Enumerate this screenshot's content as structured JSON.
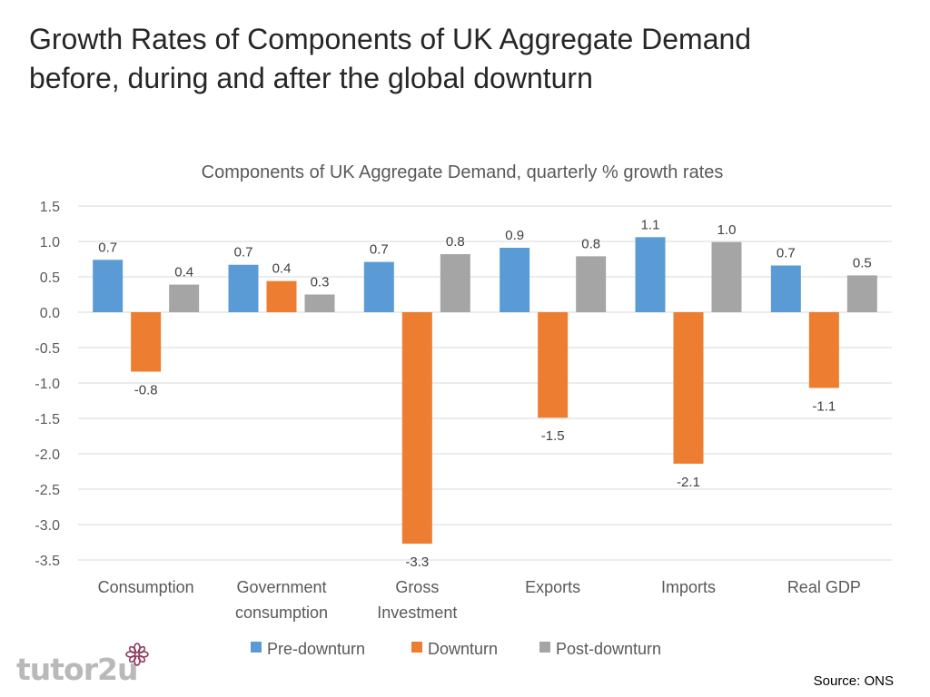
{
  "slide": {
    "title_line1": "Growth Rates of Components of UK Aggregate Demand",
    "title_line2": "before, during and after the global downturn",
    "source": "Source: ONS",
    "logo_text": "tutor2u"
  },
  "chart_data": {
    "type": "bar",
    "title": "Components of UK Aggregate Demand, quarterly % growth rates",
    "categories": [
      [
        "Consumption"
      ],
      [
        "Government",
        "consumption"
      ],
      [
        "Gross",
        "Investment"
      ],
      [
        "Exports"
      ],
      [
        "Imports"
      ],
      [
        "Real GDP"
      ]
    ],
    "series": [
      {
        "name": "Pre-downturn",
        "color": "#5B9BD5",
        "values": [
          0.74,
          0.67,
          0.71,
          0.91,
          1.06,
          0.66
        ],
        "labels": [
          "0.7",
          "0.7",
          "0.7",
          "0.9",
          "1.1",
          "0.7"
        ]
      },
      {
        "name": "Downturn",
        "color": "#ED7D31",
        "values": [
          -0.84,
          0.44,
          -3.27,
          -1.49,
          -2.14,
          -1.07
        ],
        "labels": [
          "-0.8",
          "0.4",
          "-3.3",
          "-1.5",
          "-2.1",
          "-1.1"
        ]
      },
      {
        "name": "Post-downturn",
        "color": "#A5A5A5",
        "values": [
          0.39,
          0.25,
          0.82,
          0.79,
          0.99,
          0.52
        ],
        "labels": [
          "0.4",
          "0.3",
          "0.8",
          "0.8",
          "1.0",
          "0.5"
        ]
      }
    ],
    "yticks": [
      "1.5",
      "1.0",
      "0.5",
      "0.0",
      "-0.5",
      "-1.0",
      "-1.5",
      "-2.0",
      "-2.5",
      "-3.0",
      "-3.5"
    ],
    "ylim": [
      -3.5,
      1.5
    ],
    "grid": true,
    "legend": "bottom",
    "xlabel": "",
    "ylabel": ""
  }
}
